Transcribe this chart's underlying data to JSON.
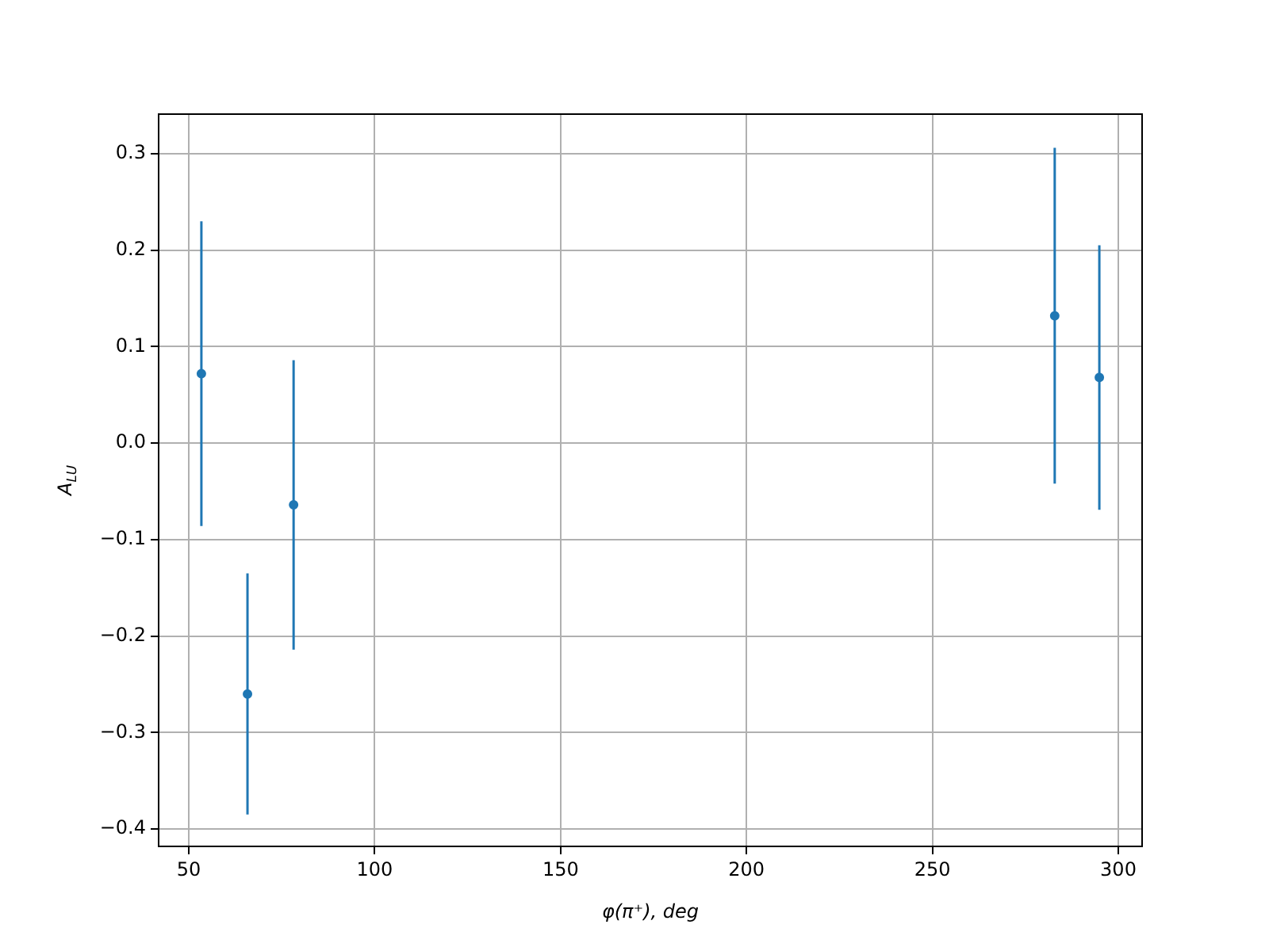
{
  "chart_data": {
    "type": "scatter",
    "xlabel": "φ(π⁺), deg",
    "ylabel": "A$_{LU}$",
    "x": [
      53.4,
      65.8,
      78.2,
      282.9,
      294.9
    ],
    "series": [
      {
        "color": "#1f77b4",
        "values": [
          0.072,
          -0.26,
          -0.064,
          0.132,
          0.068
        ],
        "errors": [
          0.158,
          0.125,
          0.15,
          0.174,
          0.137
        ]
      }
    ],
    "xlim": [
      41.9,
      306.4
    ],
    "xticks": [
      50,
      100,
      150,
      200,
      250,
      300
    ],
    "ylim": [
      -0.418,
      0.341
    ],
    "yticks": [
      {
        "value": -0.4,
        "label": "−0.4"
      },
      {
        "value": -0.3,
        "label": "−0.3"
      },
      {
        "value": -0.2,
        "label": "−0.2"
      },
      {
        "value": -0.1,
        "label": "−0.1"
      },
      {
        "value": 0,
        "label": "0.0"
      },
      {
        "value": 0.1,
        "label": "0.1"
      },
      {
        "value": 0.2,
        "label": "0.2"
      },
      {
        "value": 0.3,
        "label": "0.3"
      }
    ],
    "grid": true,
    "marker": "circle",
    "legend": false
  }
}
